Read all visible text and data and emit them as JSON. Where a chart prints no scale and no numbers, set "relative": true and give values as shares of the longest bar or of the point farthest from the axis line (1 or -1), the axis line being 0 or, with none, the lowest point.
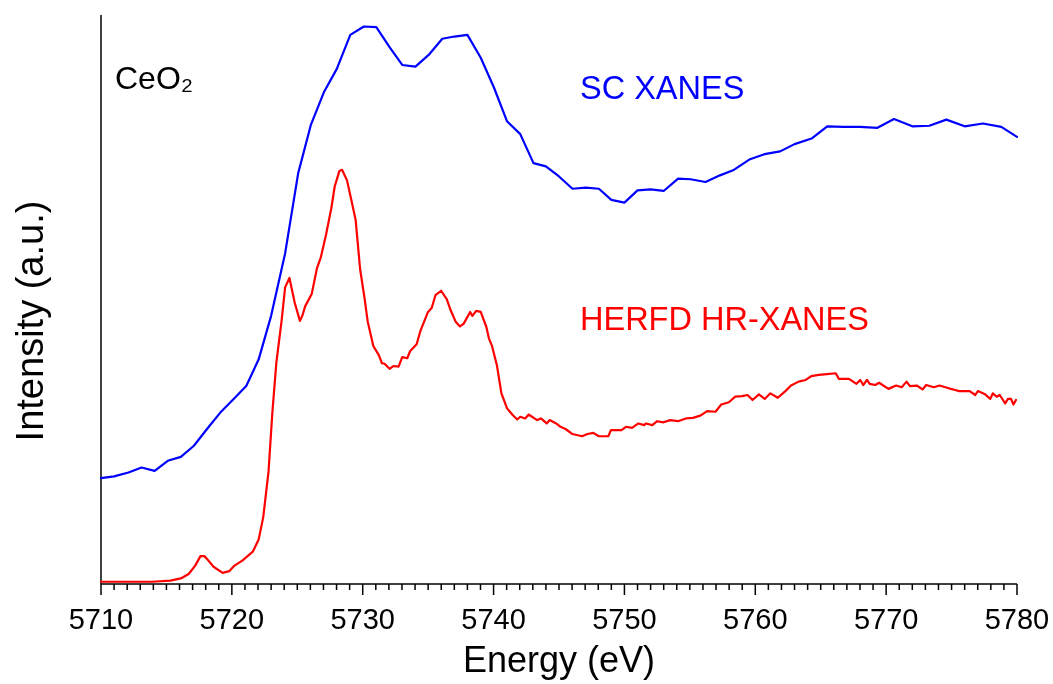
{
  "chart_data": {
    "type": "line",
    "relative": true,
    "xlabel": "Energy (eV)",
    "ylabel": "Intensity (a.u.)",
    "annotations": [
      "CeO₂"
    ],
    "xlim": [
      5710,
      5780
    ],
    "xticks": [
      5710,
      {
        "value": 5711,
        "label": null
      },
      {
        "value": 5712,
        "label": null
      },
      {
        "value": 5713,
        "label": null
      },
      {
        "value": 5714,
        "label": null
      },
      {
        "value": 5715,
        "label": null
      },
      {
        "value": 5716,
        "label": null
      },
      {
        "value": 5717,
        "label": null
      },
      {
        "value": 5718,
        "label": null
      },
      {
        "value": 5719,
        "label": null
      },
      5720,
      {
        "value": 5721,
        "label": null
      },
      {
        "value": 5722,
        "label": null
      },
      {
        "value": 5723,
        "label": null
      },
      {
        "value": 5724,
        "label": null
      },
      {
        "value": 5725,
        "label": null
      },
      {
        "value": 5726,
        "label": null
      },
      {
        "value": 5727,
        "label": null
      },
      {
        "value": 5728,
        "label": null
      },
      {
        "value": 5729,
        "label": null
      },
      5730,
      {
        "value": 5731,
        "label": null
      },
      {
        "value": 5732,
        "label": null
      },
      {
        "value": 5733,
        "label": null
      },
      {
        "value": 5734,
        "label": null
      },
      {
        "value": 5735,
        "label": null
      },
      {
        "value": 5736,
        "label": null
      },
      {
        "value": 5737,
        "label": null
      },
      {
        "value": 5738,
        "label": null
      },
      {
        "value": 5739,
        "label": null
      },
      5740,
      {
        "value": 5741,
        "label": null
      },
      {
        "value": 5742,
        "label": null
      },
      {
        "value": 5743,
        "label": null
      },
      {
        "value": 5744,
        "label": null
      },
      {
        "value": 5745,
        "label": null
      },
      {
        "value": 5746,
        "label": null
      },
      {
        "value": 5747,
        "label": null
      },
      {
        "value": 5748,
        "label": null
      },
      {
        "value": 5749,
        "label": null
      },
      5750,
      {
        "value": 5751,
        "label": null
      },
      {
        "value": 5752,
        "label": null
      },
      {
        "value": 5753,
        "label": null
      },
      {
        "value": 5754,
        "label": null
      },
      {
        "value": 5755,
        "label": null
      },
      {
        "value": 5756,
        "label": null
      },
      {
        "value": 5757,
        "label": null
      },
      {
        "value": 5758,
        "label": null
      },
      {
        "value": 5759,
        "label": null
      },
      5760,
      {
        "value": 5761,
        "label": null
      },
      {
        "value": 5762,
        "label": null
      },
      {
        "value": 5763,
        "label": null
      },
      {
        "value": 5764,
        "label": null
      },
      {
        "value": 5765,
        "label": null
      },
      {
        "value": 5766,
        "label": null
      },
      {
        "value": 5767,
        "label": null
      },
      {
        "value": 5768,
        "label": null
      },
      {
        "value": 5769,
        "label": null
      },
      5770,
      {
        "value": 5771,
        "label": null
      },
      {
        "value": 5772,
        "label": null
      },
      {
        "value": 5773,
        "label": null
      },
      {
        "value": 5774,
        "label": null
      },
      {
        "value": 5775,
        "label": null
      },
      {
        "value": 5776,
        "label": null
      },
      {
        "value": 5777,
        "label": null
      },
      {
        "value": 5778,
        "label": null
      },
      {
        "value": 5779,
        "label": null
      },
      5780
    ],
    "series": [
      {
        "name": "SC XANES",
        "color": "#0000ff",
        "x": [
          5710,
          5711,
          5712.1,
          5713.1,
          5714.1,
          5715.1,
          5716.1,
          5717.1,
          5718.1,
          5719.1,
          5720.1,
          5721.1,
          5722.05,
          5723,
          5724.07,
          5725.07,
          5726.03,
          5727.03,
          5728.02,
          5729.05,
          5730.09,
          5731.04,
          5732.05,
          5733.02,
          5734.03,
          5735.04,
          5736.08,
          5737,
          5738,
          5739.02,
          5740.02,
          5741.03,
          5742.04,
          5743.05,
          5744,
          5745,
          5746.03,
          5747.04,
          5748.05,
          5749,
          5750,
          5751,
          5752,
          5753,
          5754.1,
          5755.05,
          5756.2,
          5757.3,
          5758.3,
          5759.6,
          5760.7,
          5761.9,
          5763,
          5764.3,
          5765.5,
          5766.7,
          5768,
          5769.3,
          5770.6,
          5772,
          5773.3,
          5774.6,
          5776,
          5777.4,
          5778.8,
          5780
        ],
        "values": [
          0.19,
          0.193,
          0.2,
          0.209,
          0.203,
          0.221,
          0.228,
          0.248,
          0.278,
          0.307,
          0.331,
          0.355,
          0.403,
          0.481,
          0.593,
          0.737,
          0.823,
          0.882,
          0.924,
          0.985,
          1,
          0.999,
          0.963,
          0.931,
          0.928,
          0.949,
          0.978,
          0.982,
          0.985,
          0.944,
          0.891,
          0.83,
          0.807,
          0.755,
          0.749,
          0.731,
          0.709,
          0.711,
          0.709,
          0.689,
          0.684,
          0.706,
          0.708,
          0.705,
          0.727,
          0.726,
          0.721,
          0.733,
          0.742,
          0.762,
          0.771,
          0.776,
          0.789,
          0.799,
          0.821,
          0.82,
          0.82,
          0.818,
          0.834,
          0.821,
          0.822,
          0.833,
          0.821,
          0.826,
          0.82,
          0.802
        ]
      },
      {
        "name": "HERFD HR-XANES",
        "color": "#ff0000",
        "x": [
          5710,
          5713.9,
          5715.3,
          5716.1,
          5716.7,
          5717.2,
          5717.6,
          5717.9,
          5718.1,
          5718.6,
          5719.3,
          5719.8,
          5720.2,
          5720.8,
          5721.6,
          5722.05,
          5722.4,
          5722.8,
          5723.1,
          5723.4,
          5723.8,
          5724.07,
          5724.4,
          5724.8,
          5725.2,
          5725.4,
          5725.6,
          5726.1,
          5726.5,
          5726.8,
          5727.2,
          5727.6,
          5727.86,
          5728.22,
          5728.42,
          5728.8,
          5729.08,
          5729.46,
          5729.8,
          5730.15,
          5730.38,
          5730.81,
          5731.24,
          5731.47,
          5731.67,
          5732.05,
          5732.34,
          5732.74,
          5733.02,
          5733.4,
          5733.63,
          5734.12,
          5734.41,
          5734.99,
          5735.27,
          5735.56,
          5735.99,
          5736.42,
          5736.72,
          5737.09,
          5737.43,
          5737.72,
          5738.21,
          5738.38,
          5738.67,
          5739.02,
          5739.45,
          5739.65,
          5739.88,
          5740.25,
          5740.6,
          5741.03,
          5741.46,
          5741.81,
          5742.04,
          5742.42,
          5742.68,
          5743.33,
          5743.62,
          5744.06,
          5744.29,
          5744.78,
          5745.12,
          5745.5,
          5746.03,
          5746.76,
          5747.18,
          5747.62,
          5748.05,
          5748.77,
          5748.97,
          5749.77,
          5750.12,
          5750.58,
          5751.07,
          5751.5,
          5751.64,
          5752.13,
          5752.5,
          5752.99,
          5753.5,
          5754.08,
          5754.71,
          5755.23,
          5755.8,
          5756.32,
          5756.96,
          5757.4,
          5757.98,
          5758.47,
          5758.99,
          5759.41,
          5759.79,
          5760.28,
          5760.72,
          5761.15,
          5761.72,
          5762.3,
          5762.73,
          5763.31,
          5763.85,
          5764.28,
          5764.85,
          5765.28,
          5766.15,
          5766.38,
          5767.16,
          5767.73,
          5768.02,
          5768.25,
          5768.54,
          5768.74,
          5769.17,
          5769.46,
          5770.18,
          5770.76,
          5771.19,
          5771.56,
          5771.82,
          5772.34,
          5772.78,
          5773.06,
          5773.64,
          5774.07,
          5774.79,
          5775.28,
          5775.57,
          5776.38,
          5776.81,
          5777.01,
          5777.52,
          5777.96,
          5778.15,
          5778.45,
          5778.68,
          5779.1,
          5779.31,
          5779.54,
          5779.73,
          5779.92
        ],
        "values": [
          0.004,
          0.004,
          0.006,
          0.01,
          0.018,
          0.033,
          0.05,
          0.05,
          0.045,
          0.031,
          0.02,
          0.023,
          0.033,
          0.042,
          0.058,
          0.08,
          0.12,
          0.201,
          0.309,
          0.397,
          0.472,
          0.532,
          0.549,
          0.505,
          0.472,
          0.482,
          0.498,
          0.52,
          0.566,
          0.586,
          0.627,
          0.674,
          0.713,
          0.741,
          0.743,
          0.724,
          0.694,
          0.653,
          0.565,
          0.511,
          0.471,
          0.427,
          0.41,
          0.396,
          0.395,
          0.386,
          0.391,
          0.39,
          0.407,
          0.405,
          0.418,
          0.43,
          0.454,
          0.488,
          0.495,
          0.518,
          0.526,
          0.511,
          0.491,
          0.471,
          0.462,
          0.467,
          0.488,
          0.481,
          0.49,
          0.488,
          0.461,
          0.44,
          0.427,
          0.393,
          0.342,
          0.315,
          0.303,
          0.295,
          0.3,
          0.297,
          0.304,
          0.294,
          0.297,
          0.288,
          0.294,
          0.288,
          0.282,
          0.278,
          0.269,
          0.265,
          0.269,
          0.271,
          0.265,
          0.265,
          0.276,
          0.276,
          0.282,
          0.28,
          0.288,
          0.285,
          0.288,
          0.285,
          0.292,
          0.29,
          0.294,
          0.292,
          0.297,
          0.298,
          0.302,
          0.31,
          0.309,
          0.322,
          0.326,
          0.336,
          0.337,
          0.339,
          0.33,
          0.34,
          0.332,
          0.342,
          0.334,
          0.346,
          0.356,
          0.363,
          0.366,
          0.373,
          0.375,
          0.376,
          0.378,
          0.368,
          0.368,
          0.359,
          0.366,
          0.357,
          0.366,
          0.359,
          0.357,
          0.361,
          0.35,
          0.356,
          0.353,
          0.363,
          0.355,
          0.356,
          0.349,
          0.357,
          0.353,
          0.356,
          0.351,
          0.348,
          0.346,
          0.346,
          0.339,
          0.346,
          0.341,
          0.332,
          0.342,
          0.336,
          0.339,
          0.324,
          0.332,
          0.332,
          0.322,
          0.33
        ]
      }
    ]
  }
}
